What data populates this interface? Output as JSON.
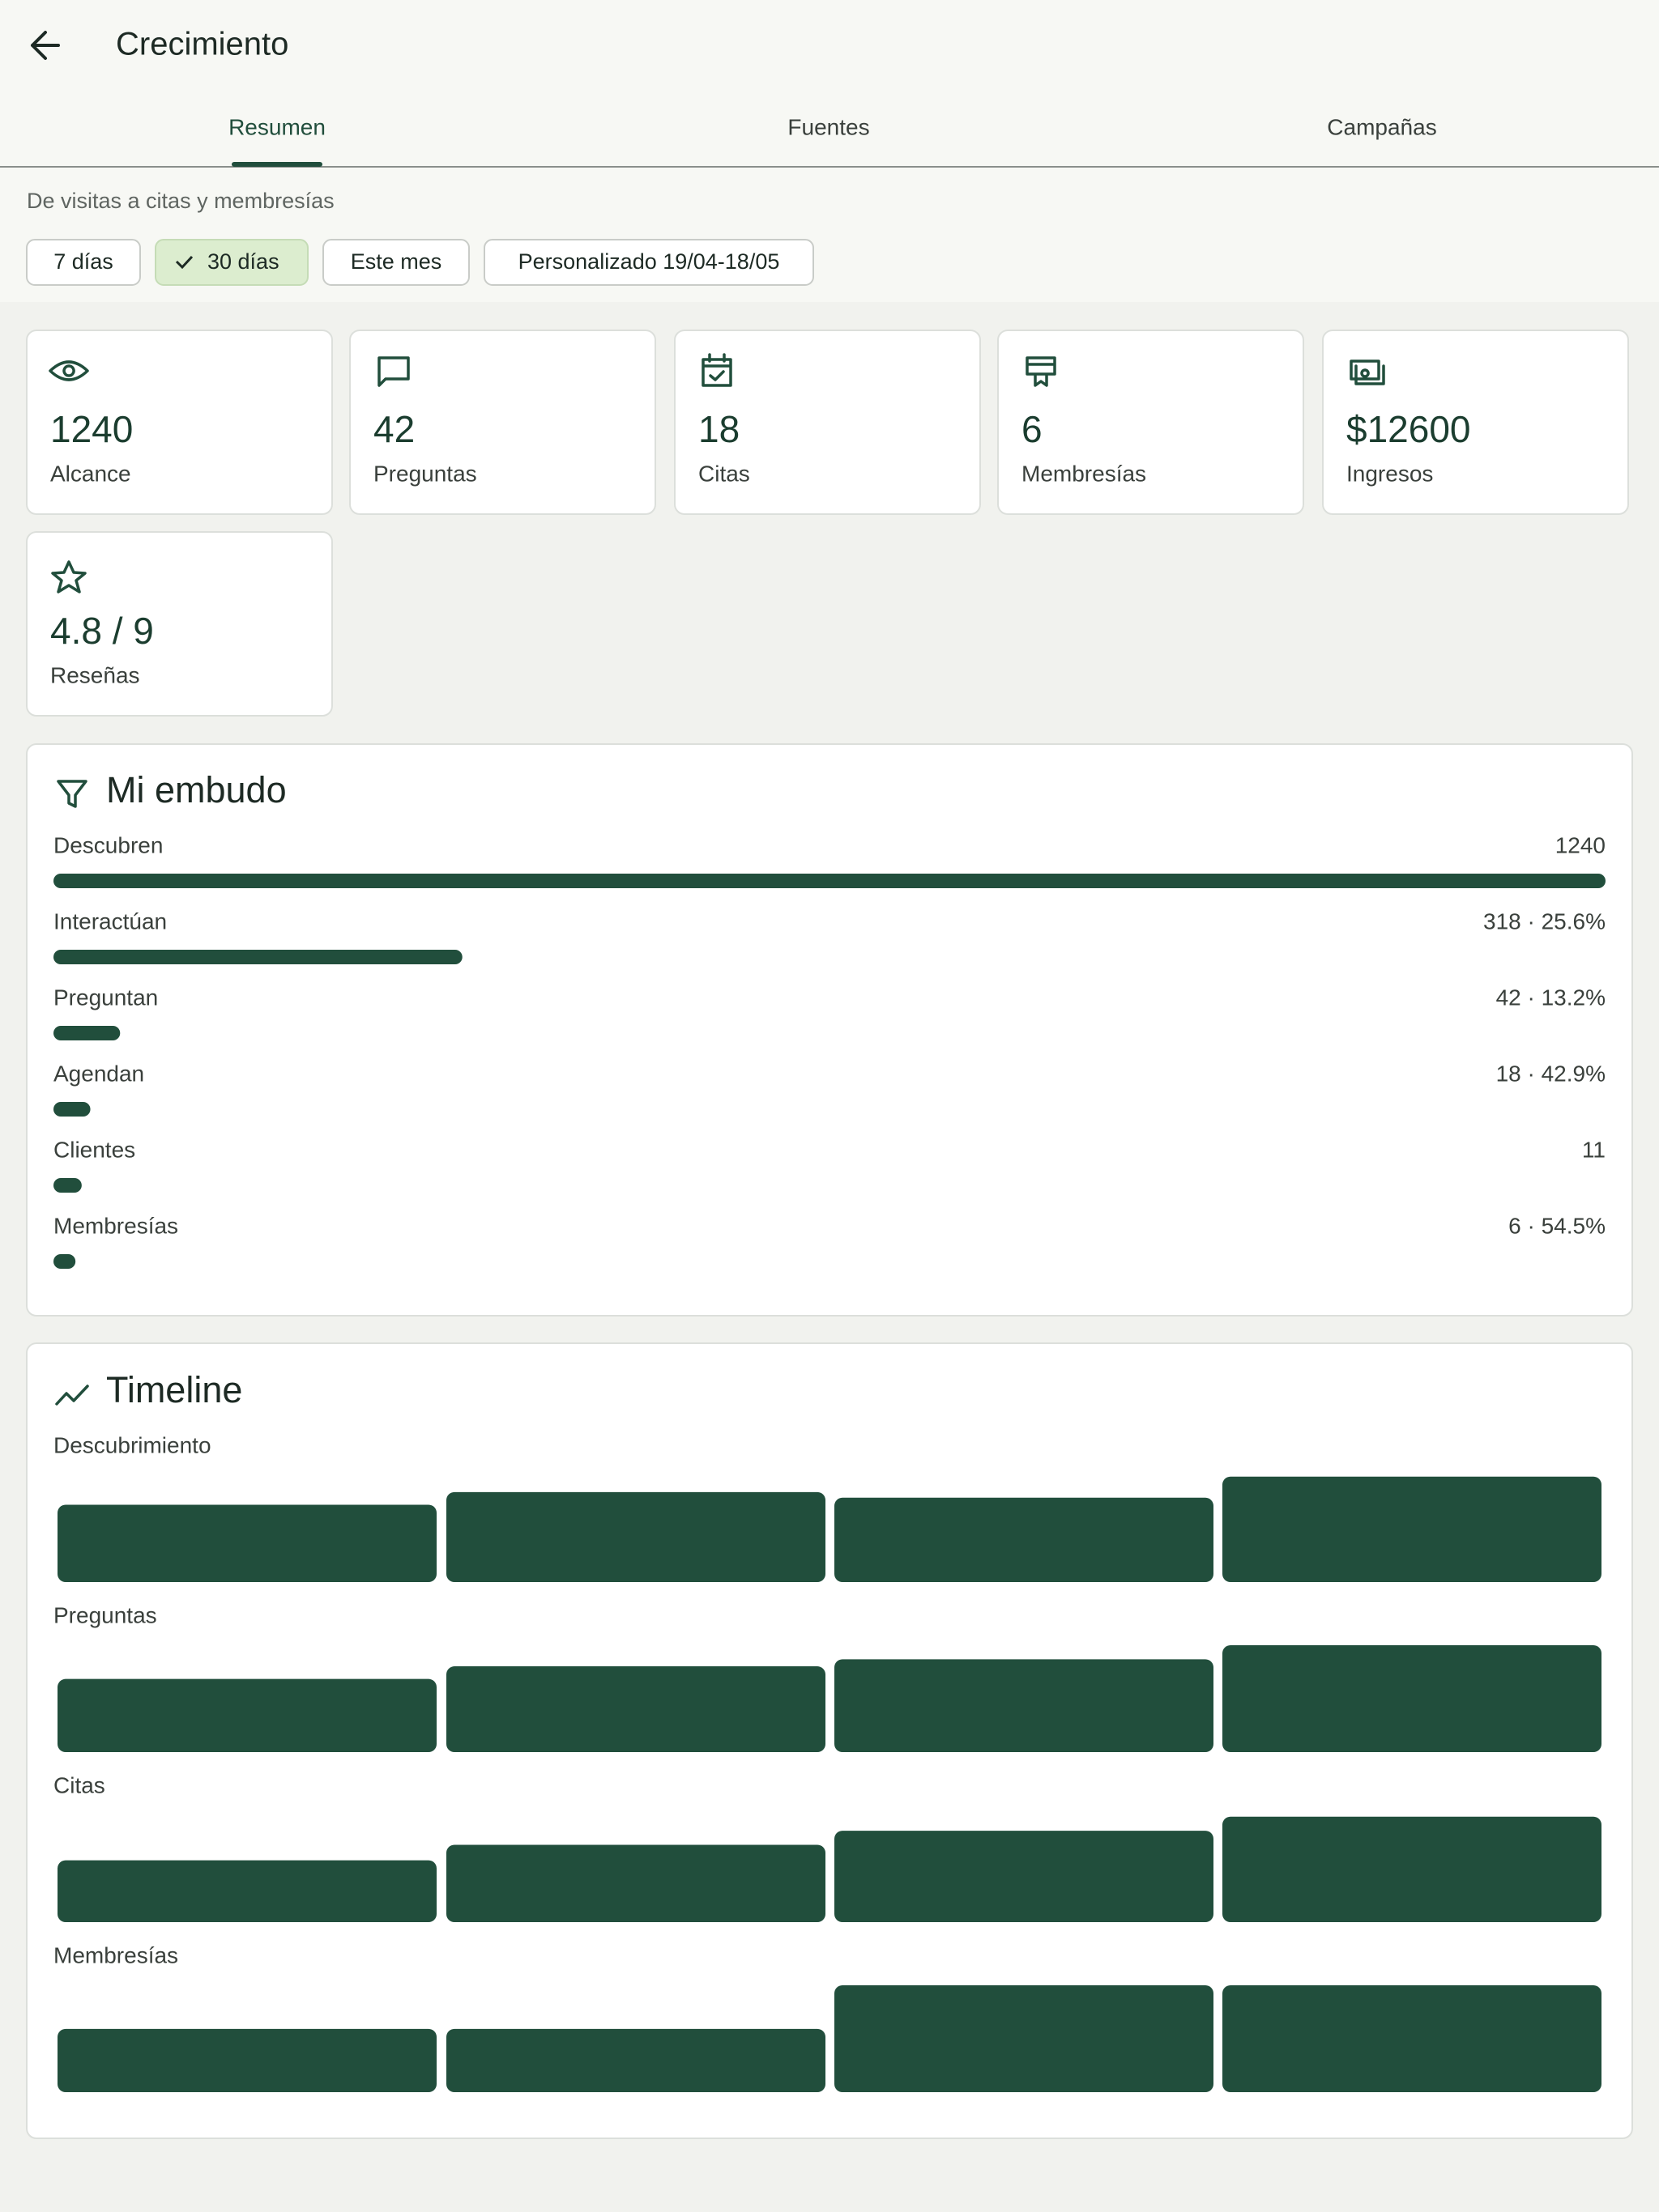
{
  "header": {
    "title": "Crecimiento"
  },
  "tabs": [
    "Resumen",
    "Fuentes",
    "Campañas"
  ],
  "subtitle": "De visitas a citas y membresías",
  "filters": [
    "7 días",
    "30 días",
    "Este mes",
    "Personalizado 19/04-18/05"
  ],
  "kpis": [
    {
      "value": "1240",
      "label": "Alcance"
    },
    {
      "value": "42",
      "label": "Preguntas"
    },
    {
      "value": "18",
      "label": "Citas"
    },
    {
      "value": "6",
      "label": "Membresías"
    },
    {
      "value": "$12600",
      "label": "Ingresos"
    },
    {
      "value": "4.8 / 9",
      "label": "Reseñas"
    }
  ],
  "funnel": {
    "title": "Mi embudo",
    "categories": [
      "Descubren",
      "Interactúan",
      "Preguntan",
      "Agendan",
      "Clientes",
      "Membresías"
    ],
    "values": [
      1240,
      318,
      42,
      18,
      11,
      6
    ],
    "value_labels": [
      "1240",
      "318 · 25.6%",
      "42 · 13.2%",
      "18 · 42.9%",
      "11",
      "6 · 54.5%"
    ]
  },
  "timeline": {
    "title": "Timeline",
    "series": [
      {
        "name": "Descubrimiento",
        "values": [
          55,
          64,
          60,
          75
        ]
      },
      {
        "name": "Preguntas",
        "values": [
          52,
          61,
          66,
          76
        ]
      },
      {
        "name": "Citas",
        "values": [
          44,
          55,
          65,
          75
        ]
      },
      {
        "name": "Membresías",
        "values": [
          45,
          45,
          76,
          76
        ]
      }
    ]
  }
}
